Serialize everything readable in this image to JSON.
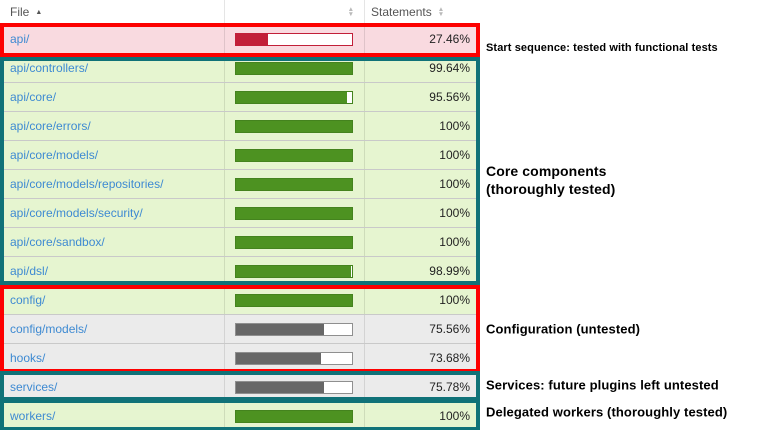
{
  "header": {
    "file": {
      "label": "File"
    },
    "statements": {
      "label": "Statements"
    }
  },
  "icons": {
    "sort_asc": "▲",
    "sort_up": "▲",
    "sort_down": "▼"
  },
  "table": {
    "rows": [
      {
        "file": "api/",
        "statements": "27.46%",
        "value": 27.46,
        "status": "low"
      },
      {
        "file": "api/controllers/",
        "statements": "99.64%",
        "value": 99.64,
        "status": "high"
      },
      {
        "file": "api/core/",
        "statements": "95.56%",
        "value": 95.56,
        "status": "high"
      },
      {
        "file": "api/core/errors/",
        "statements": "100%",
        "value": 100,
        "status": "high"
      },
      {
        "file": "api/core/models/",
        "statements": "100%",
        "value": 100,
        "status": "high"
      },
      {
        "file": "api/core/models/repositories/",
        "statements": "100%",
        "value": 100,
        "status": "high"
      },
      {
        "file": "api/core/models/security/",
        "statements": "100%",
        "value": 100,
        "status": "high"
      },
      {
        "file": "api/core/sandbox/",
        "statements": "100%",
        "value": 100,
        "status": "high"
      },
      {
        "file": "api/dsl/",
        "statements": "98.99%",
        "value": 98.99,
        "status": "high"
      },
      {
        "file": "config/",
        "statements": "100%",
        "value": 100,
        "status": "high"
      },
      {
        "file": "config/models/",
        "statements": "75.56%",
        "value": 75.56,
        "status": "gray"
      },
      {
        "file": "hooks/",
        "statements": "73.68%",
        "value": 73.68,
        "status": "gray"
      },
      {
        "file": "services/",
        "statements": "75.78%",
        "value": 75.78,
        "status": "gray"
      },
      {
        "file": "workers/",
        "statements": "100%",
        "value": 100,
        "status": "high"
      }
    ]
  },
  "groups": [
    {
      "label": "Start sequence: tested with functional tests",
      "box_color": "#fd0000",
      "rows": [
        0,
        0
      ]
    },
    {
      "label": "Core components\n(thoroughly tested)",
      "box_color": "#107278",
      "rows": [
        1,
        8
      ]
    },
    {
      "label": "Configuration (untested)",
      "box_color": "#fd0000",
      "rows": [
        9,
        11
      ]
    },
    {
      "label": "Services: future plugins left untested",
      "box_color": "#107278",
      "rows": [
        12,
        12
      ]
    },
    {
      "label": "Delegated workers (thoroughly tested)",
      "box_color": "#107278",
      "rows": [
        13,
        13
      ]
    }
  ],
  "colors": {
    "row_low_bg": "#f9dae0",
    "row_high_bg": "#e6f5d0",
    "row_gray_bg": "#ebebeb",
    "bar_low": "#c21f39",
    "bar_high": "#4d9221",
    "bar_gray": "#676767",
    "bar_track": "#ffffff",
    "link": "#3e8ad2",
    "header_text": "#555555",
    "percent_text": "#222222"
  }
}
